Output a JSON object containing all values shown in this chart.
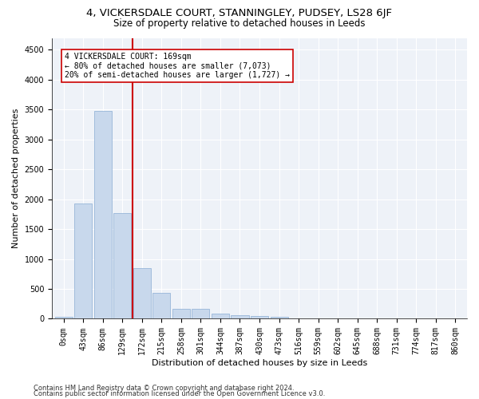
{
  "title": "4, VICKERSDALE COURT, STANNINGLEY, PUDSEY, LS28 6JF",
  "subtitle": "Size of property relative to detached houses in Leeds",
  "xlabel": "Distribution of detached houses by size in Leeds",
  "ylabel": "Number of detached properties",
  "bar_color": "#c8d8ec",
  "bar_edgecolor": "#8aadd4",
  "vline_color": "#cc0000",
  "vline_bin_index": 4,
  "annotation_text": "4 VICKERSDALE COURT: 169sqm\n← 80% of detached houses are smaller (7,073)\n20% of semi-detached houses are larger (1,727) →",
  "annotation_box_edgecolor": "#cc0000",
  "categories": [
    "0sqm",
    "43sqm",
    "86sqm",
    "129sqm",
    "172sqm",
    "215sqm",
    "258sqm",
    "301sqm",
    "344sqm",
    "387sqm",
    "430sqm",
    "473sqm",
    "516sqm",
    "559sqm",
    "602sqm",
    "645sqm",
    "688sqm",
    "731sqm",
    "774sqm",
    "817sqm",
    "860sqm"
  ],
  "values": [
    30,
    1930,
    3480,
    1770,
    850,
    440,
    165,
    165,
    90,
    55,
    40,
    30,
    0,
    0,
    0,
    0,
    0,
    0,
    0,
    0,
    0
  ],
  "ylim": [
    0,
    4700
  ],
  "yticks": [
    0,
    500,
    1000,
    1500,
    2000,
    2500,
    3000,
    3500,
    4000,
    4500
  ],
  "footer1": "Contains HM Land Registry data © Crown copyright and database right 2024.",
  "footer2": "Contains public sector information licensed under the Open Government Licence v3.0.",
  "plot_bg_color": "#eef2f8",
  "grid_color": "#ffffff",
  "title_fontsize": 9.5,
  "subtitle_fontsize": 8.5,
  "axis_label_fontsize": 8,
  "tick_fontsize": 7,
  "annot_fontsize": 7,
  "footer_fontsize": 6
}
